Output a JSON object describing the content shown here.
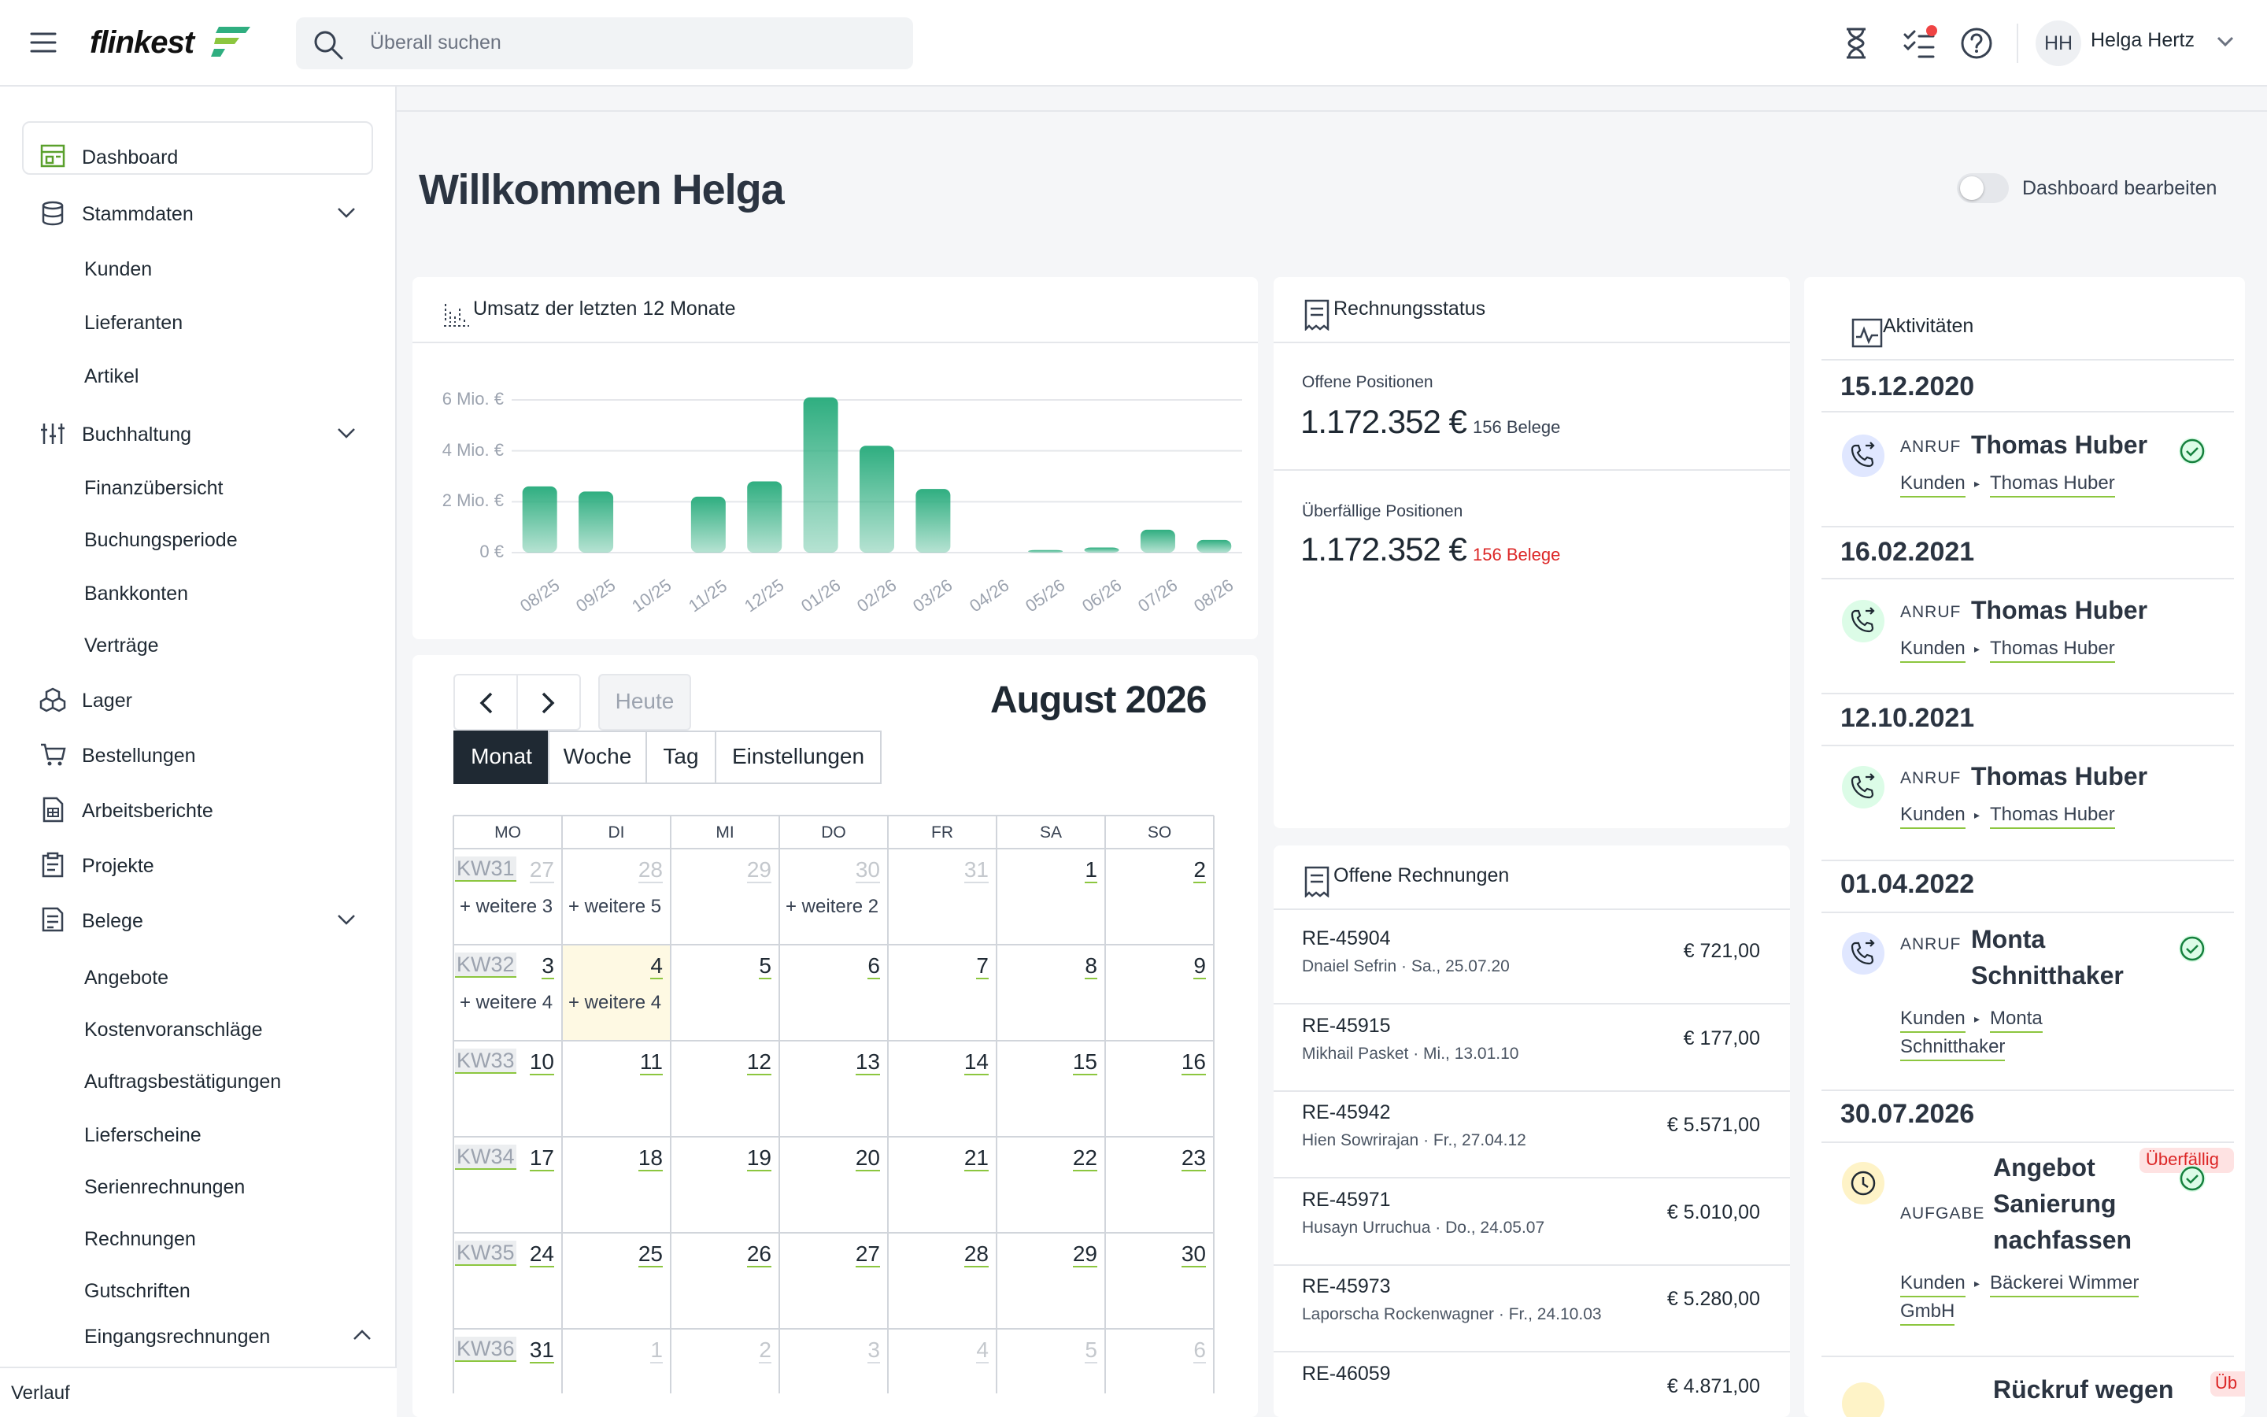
{
  "app": {
    "brand": "flinkest",
    "search_placeholder": "Überall suchen",
    "user_initials": "HH",
    "user_name": "Helga Hertz"
  },
  "sidebar": {
    "items": [
      {
        "label": "Dashboard"
      },
      {
        "label": "Stammdaten"
      },
      {
        "label": "Kunden"
      },
      {
        "label": "Lieferanten"
      },
      {
        "label": "Artikel"
      },
      {
        "label": "Buchhaltung"
      },
      {
        "label": "Finanzübersicht"
      },
      {
        "label": "Buchungsperiode"
      },
      {
        "label": "Bankkonten"
      },
      {
        "label": "Verträge"
      },
      {
        "label": "Lager"
      },
      {
        "label": "Bestellungen"
      },
      {
        "label": "Arbeitsberichte"
      },
      {
        "label": "Projekte"
      },
      {
        "label": "Belege"
      },
      {
        "label": "Angebote"
      },
      {
        "label": "Kostenvoranschläge"
      },
      {
        "label": "Auftragsbestätigungen"
      },
      {
        "label": "Lieferscheine"
      },
      {
        "label": "Serienrechnungen"
      },
      {
        "label": "Rechnungen"
      },
      {
        "label": "Gutschriften"
      },
      {
        "label": "Eingangsrechnungen"
      }
    ],
    "footer": "Verlauf"
  },
  "main": {
    "greeting": "Willkommen Helga",
    "edit_toggle_label": "Dashboard bearbeiten"
  },
  "revenue": {
    "title": "Umsatz der letzten 12 Monate"
  },
  "chart_data": {
    "type": "bar",
    "categories": [
      "08/25",
      "09/25",
      "10/25",
      "11/25",
      "12/25",
      "01/26",
      "02/26",
      "03/26",
      "04/26",
      "05/26",
      "06/26",
      "07/26",
      "08/26"
    ],
    "values": [
      2.6,
      2.4,
      0,
      2.2,
      2.8,
      6.1,
      4.2,
      2.5,
      0,
      0.1,
      0.2,
      0.9,
      0.5
    ],
    "y_ticks": [
      "0 €",
      "2 Mio. €",
      "4 Mio. €",
      "6 Mio. €"
    ],
    "ylim": [
      0,
      6
    ],
    "grid": true,
    "color": "#2fae80"
  },
  "invoice_status": {
    "title": "Rechnungsstatus",
    "open_label": "Offene Positionen",
    "open_amount": "1.172.352 €",
    "open_count": "156 Belege",
    "overdue_label": "Überfällige Positionen",
    "overdue_amount": "1.172.352 €",
    "overdue_count": "156 Belege"
  },
  "calendar": {
    "today_button": "Heute",
    "views": [
      "Monat",
      "Woche",
      "Tag",
      "Einstellungen"
    ],
    "title": "August 2026",
    "weekdays": [
      "MO",
      "DI",
      "MI",
      "DO",
      "FR",
      "SA",
      "SO"
    ],
    "weeks": [
      {
        "kw": "KW31",
        "days": [
          "27",
          "28",
          "29",
          "30",
          "31",
          "1",
          "2"
        ],
        "more": [
          "+ weitere 3",
          "+ weitere 5",
          "",
          "+ weitere 2",
          "",
          "",
          ""
        ]
      },
      {
        "kw": "KW32",
        "days": [
          "3",
          "4",
          "5",
          "6",
          "7",
          "8",
          "9"
        ],
        "more": [
          "+ weitere 4",
          "+ weitere 4",
          "",
          "",
          "",
          "",
          ""
        ]
      },
      {
        "kw": "KW33",
        "days": [
          "10",
          "11",
          "12",
          "13",
          "14",
          "15",
          "16"
        ],
        "more": [
          "",
          "",
          "",
          "",
          "",
          "",
          ""
        ]
      },
      {
        "kw": "KW34",
        "days": [
          "17",
          "18",
          "19",
          "20",
          "21",
          "22",
          "23"
        ],
        "more": [
          "",
          "",
          "",
          "",
          "",
          "",
          ""
        ]
      },
      {
        "kw": "KW35",
        "days": [
          "24",
          "25",
          "26",
          "27",
          "28",
          "29",
          "30"
        ],
        "more": [
          "",
          "",
          "",
          "",
          "",
          "",
          ""
        ]
      },
      {
        "kw": "KW36",
        "days": [
          "31",
          "1",
          "2",
          "3",
          "4",
          "5",
          "6"
        ],
        "more": [
          "",
          "",
          "",
          "",
          "",
          "",
          ""
        ]
      }
    ]
  },
  "open_invoices": {
    "title": "Offene Rechnungen",
    "rows": [
      {
        "number": "RE-45904",
        "sub": "Dnaiel Sefrin · Sa., 25.07.20",
        "amount": "€ 721,00"
      },
      {
        "number": "RE-45915",
        "sub": "Mikhail Pasket · Mi., 13.01.10",
        "amount": "€ 177,00"
      },
      {
        "number": "RE-45942",
        "sub": "Hien Sowrirajan · Fr., 27.04.12",
        "amount": "€ 5.571,00"
      },
      {
        "number": "RE-45971",
        "sub": "Husayn Urruchua · Do., 24.05.07",
        "amount": "€ 5.010,00"
      },
      {
        "number": "RE-45973",
        "sub": "Laporscha Rockenwagner · Fr., 24.10.03",
        "amount": "€ 5.280,00"
      },
      {
        "number": "RE-46059",
        "sub": "",
        "amount": "€ 4.871,00"
      }
    ]
  },
  "activities": {
    "title": "Aktivitäten",
    "groups": [
      {
        "date": "15.12.2020",
        "type": "ANRUF",
        "name": "Thomas Huber",
        "link1": "Kunden",
        "link2": "Thomas Huber"
      },
      {
        "date": "16.02.2021",
        "type": "ANRUF",
        "name": "Thomas Huber",
        "link1": "Kunden",
        "link2": "Thomas Huber"
      },
      {
        "date": "12.10.2021",
        "type": "ANRUF",
        "name": "Thomas Huber",
        "link1": "Kunden",
        "link2": "Thomas Huber"
      },
      {
        "date": "01.04.2022",
        "type": "ANRUF",
        "name_line1": "Monta",
        "name_line2": "Schnitthaker",
        "link1": "Kunden",
        "link2_line1": "Monta",
        "link2_line2": "Schnitthaker"
      },
      {
        "date": "30.07.2026",
        "type": "AUFGABE",
        "name_line1": "Angebot",
        "name_line2": "Sanierung",
        "name_line3": "nachfassen",
        "badge": "Überfällig",
        "link1": "Kunden",
        "link2_line1": "Bäckerei Wimmer",
        "link2_line2": "GmbH"
      },
      {
        "name_partial": "Rückruf wegen",
        "badge_partial": "Üb"
      }
    ]
  }
}
